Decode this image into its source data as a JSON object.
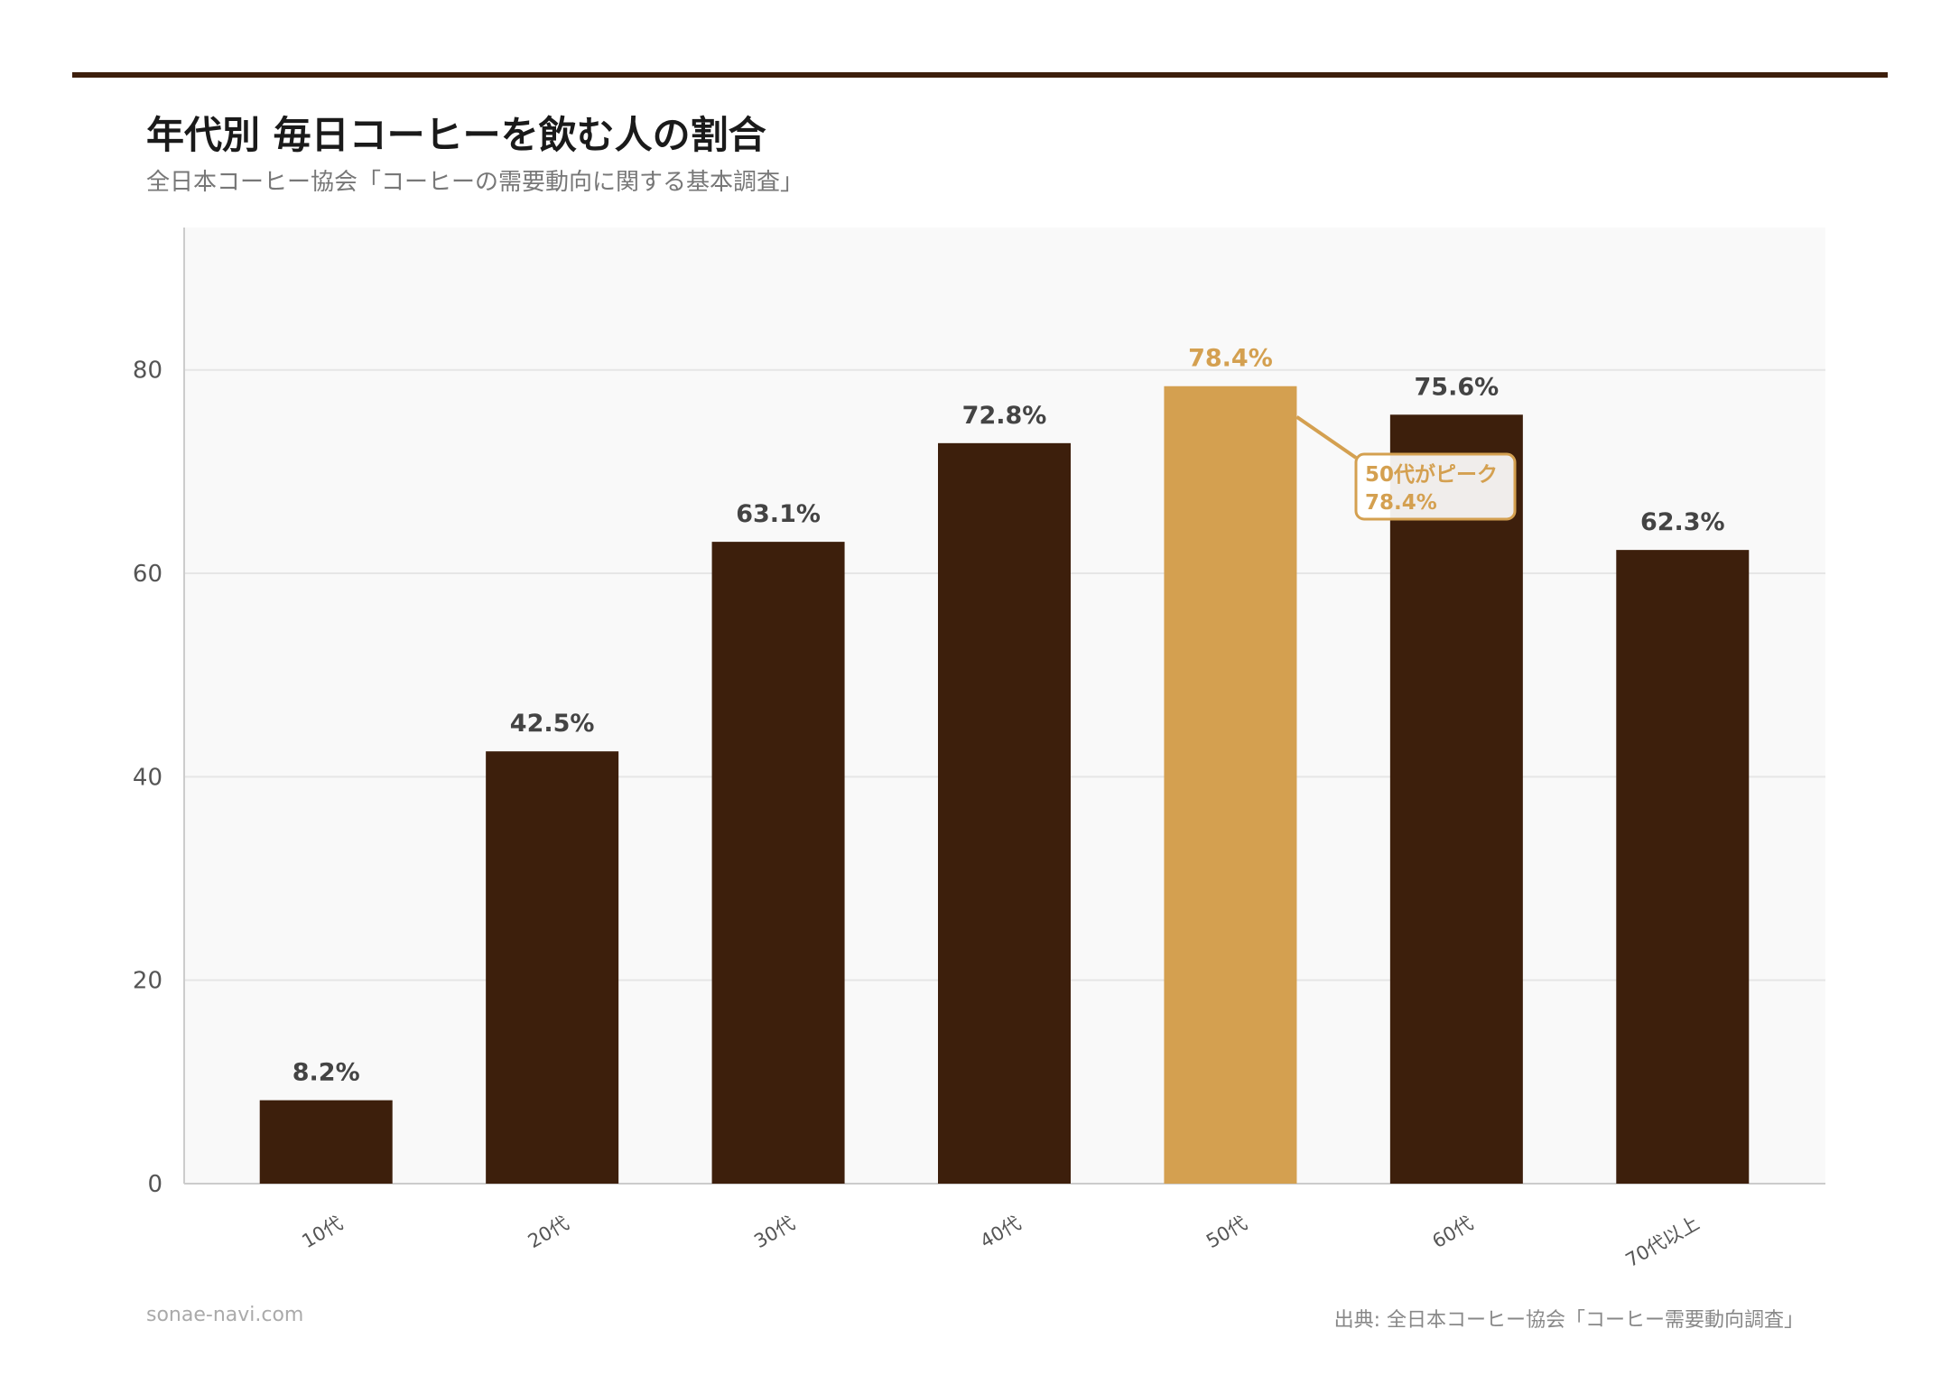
{
  "title": "年代別 毎日コーヒーを飲む人の割合",
  "subtitle": "全日本コーヒー協会「コーヒーの需要動向に関する基本調査」",
  "footer": {
    "site": "sonae-navi.com",
    "source": "出典: 全日本コーヒー協会「コーヒー需要動向調査」"
  },
  "colors": {
    "bar": "#3d1f0c",
    "highlight": "#d4a050",
    "rule": "#3d1f0c",
    "plot_bg": "#f9f9f9"
  },
  "chart_data": {
    "type": "bar",
    "categories": [
      "10代",
      "20代",
      "30代",
      "40代",
      "50代",
      "60代",
      "70代以上"
    ],
    "values": [
      8.2,
      42.5,
      63.1,
      72.8,
      78.4,
      75.6,
      62.3
    ],
    "value_labels": [
      "8.2%",
      "42.5%",
      "63.1%",
      "72.8%",
      "78.4%",
      "75.6%",
      "62.3%"
    ],
    "highlight_index": 4,
    "yticks": [
      0,
      20,
      40,
      60,
      80
    ],
    "ylim": [
      0,
      94
    ],
    "grid": true,
    "annotation": {
      "line1": "50代がピーク",
      "line2": "78.4%"
    }
  }
}
